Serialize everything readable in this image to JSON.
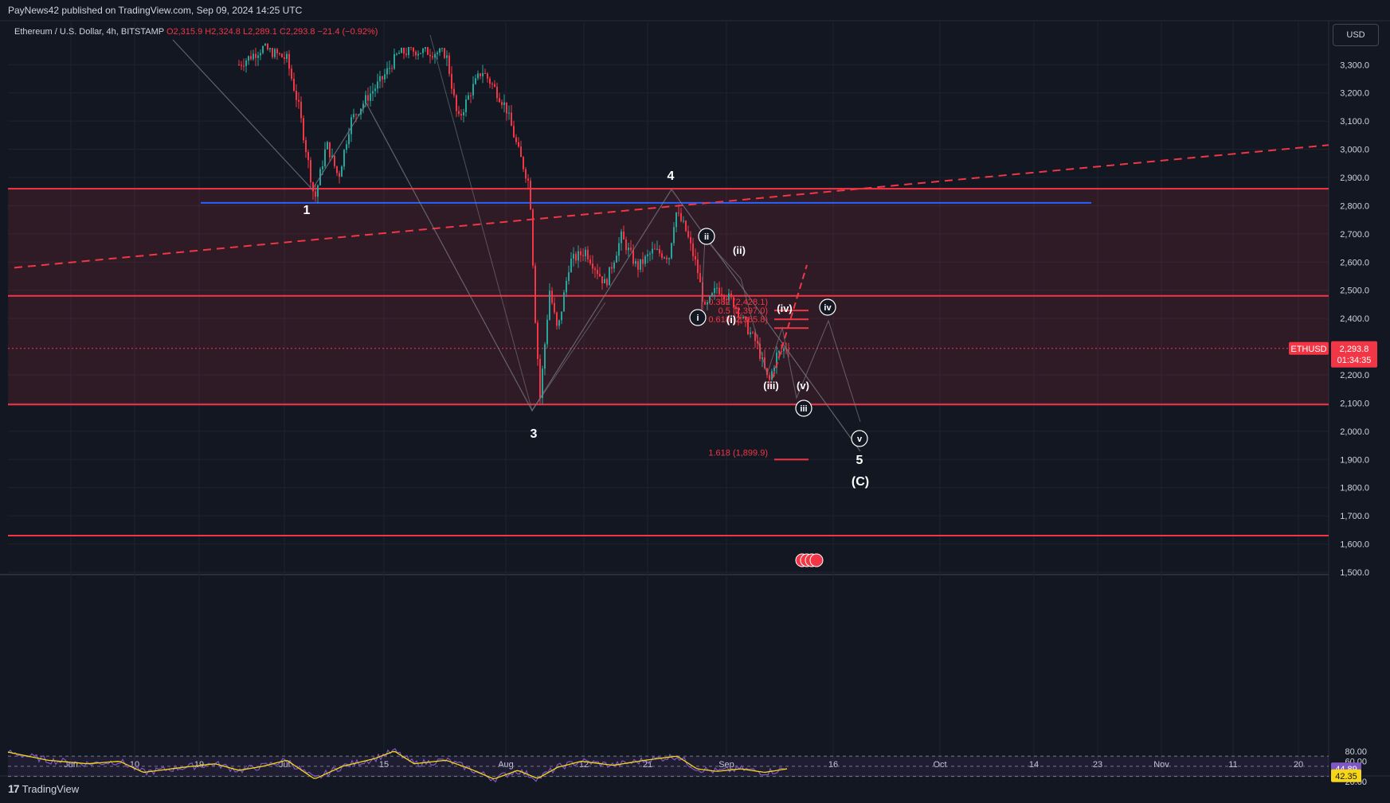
{
  "header": {
    "published": "PayNews42 published on TradingView.com, Sep 09, 2024 14:25 UTC",
    "symbol": "Ethereum / U.S. Dollar, 4h, BITSTAMP",
    "ohlc_o": "O2,315.9",
    "ohlc_h": "H2,324.8",
    "ohlc_l": "L2,289.1",
    "ohlc_c": "C2,293.8",
    "change": "−21.4 (−0.92%)"
  },
  "currency": "USD",
  "footer": {
    "brand": "TradingView",
    "logo": "17"
  },
  "colors": {
    "background": "#131722",
    "up": "#26a69a",
    "down": "#f23645",
    "level": "#f23645",
    "blue_line": "#2962ff",
    "wave_line": "#787b86",
    "rsi": "#7e57c2",
    "rsi_ma": "#f7d617"
  },
  "chart_data": {
    "type": "candlestick",
    "price_axis": {
      "ticks": [
        "3,300.0",
        "3,200.0",
        "3,100.0",
        "3,000.0",
        "2,900.0",
        "2,800.0",
        "2,700.0",
        "2,600.0",
        "2,500.0",
        "2,400.0",
        "2,200.0",
        "2,100.0",
        "2,000.0",
        "1,900.0",
        "1,800.0",
        "1,700.0",
        "1,600.0",
        "1,500.0"
      ],
      "range": [
        1450,
        3350
      ]
    },
    "time_axis": {
      "ticks": [
        "Jun",
        "10",
        "19",
        "Jul",
        "15",
        "Aug",
        "12",
        "21",
        "Sep",
        "16",
        "Oct",
        "14",
        "23",
        "Nov",
        "11",
        "20"
      ]
    },
    "last_price": {
      "symbol": "ETHUSD",
      "price": "2,293.8",
      "countdown": "01:34:35",
      "value": 2293.8
    },
    "horizontal_levels": [
      2860,
      2480,
      2095,
      1630
    ],
    "support_line": 2810,
    "resistance_trend": {
      "from": 2580,
      "to": 3015
    },
    "zone": {
      "from": 2095,
      "to": 2860
    },
    "fibs": [
      {
        "label": "0.382 (2,428.1)",
        "price": 2428.1
      },
      {
        "label": "0.5 (2,397.0)",
        "price": 2397.0
      },
      {
        "label": "0.618 (2,365.8)",
        "price": 2365.8
      },
      {
        "label": "1.618 (1,899.9)",
        "price": 1899.9
      }
    ],
    "wave_labels": {
      "w1": "1",
      "w3": "3",
      "w4": "4",
      "w5": "5",
      "wC": "(C)",
      "c_i": "i",
      "c_ii": "ii",
      "c_iii": "iii",
      "c_iv": "iv",
      "c_v": "v",
      "p_i": "(i)",
      "p_ii": "(ii)",
      "p_iii": "(iii)",
      "p_iv": "(iv)",
      "p_v": "(v)"
    },
    "rsi": {
      "ticks": [
        "80.00",
        "60.00",
        "20.00"
      ],
      "value": "44.89",
      "ma_value": "42.35",
      "value_num": 44.89,
      "ma_num": 42.35,
      "bands": [
        70,
        50,
        30
      ]
    }
  }
}
